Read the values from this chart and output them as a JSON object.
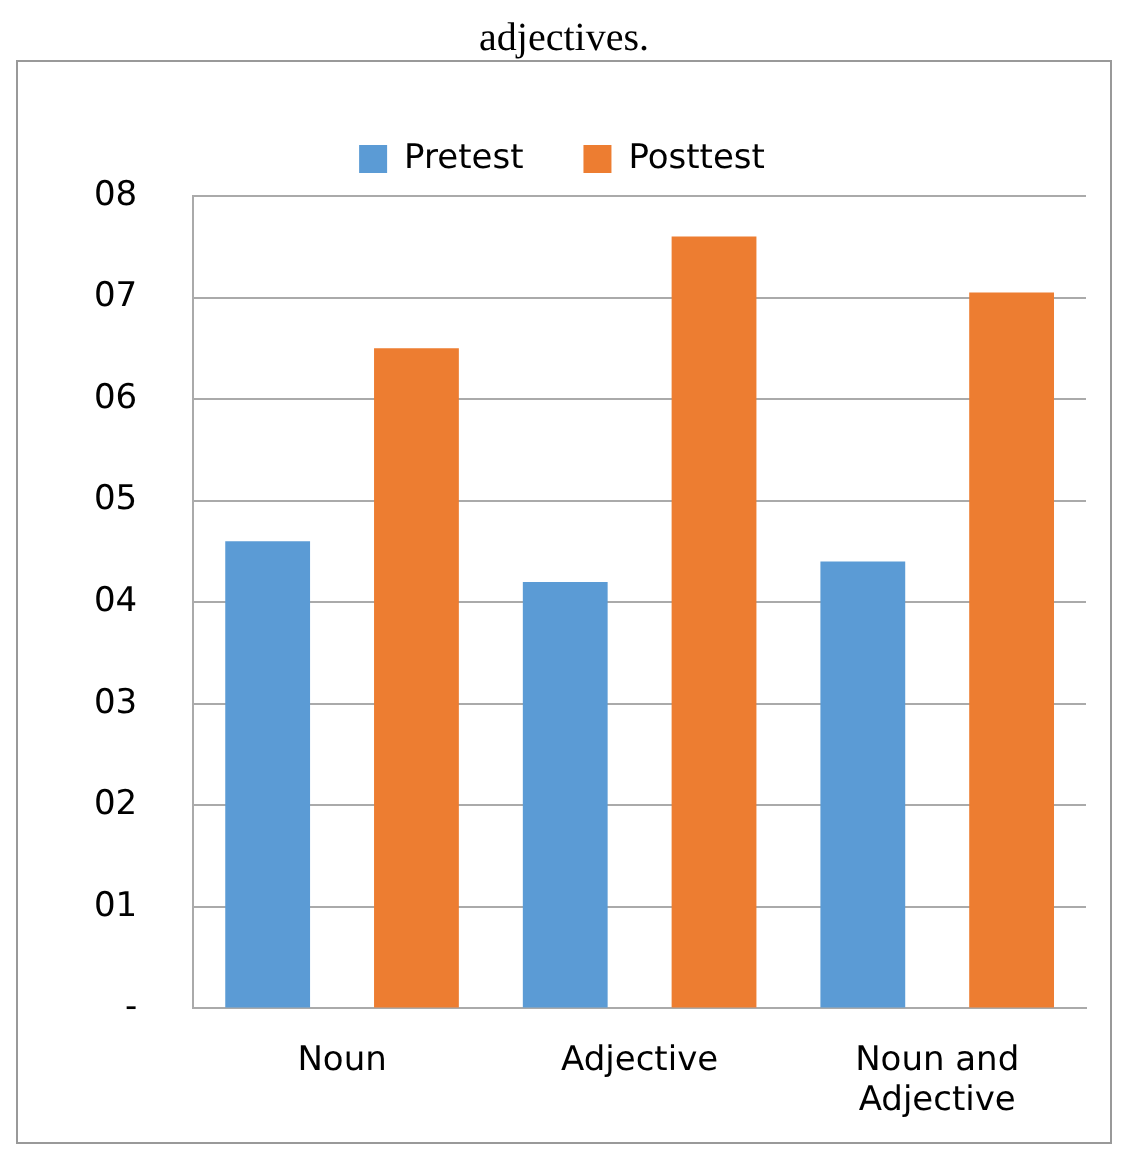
{
  "chart_data": {
    "type": "bar",
    "title": "adjectives.",
    "categories": [
      "Noun",
      "Adjective",
      "Noun and Adjective"
    ],
    "series": [
      {
        "name": "Pretest",
        "color": "#5b9bd5",
        "values": [
          4.6,
          4.2,
          4.4
        ]
      },
      {
        "name": "Posttest",
        "color": "#ed7d31",
        "values": [
          6.5,
          7.6,
          7.05
        ]
      }
    ],
    "ylim": [
      0,
      8
    ],
    "yticks": [
      {
        "value": 0,
        "label": "-"
      },
      {
        "value": 1,
        "label": "01"
      },
      {
        "value": 2,
        "label": "02"
      },
      {
        "value": 3,
        "label": "03"
      },
      {
        "value": 4,
        "label": "04"
      },
      {
        "value": 5,
        "label": "05"
      },
      {
        "value": 6,
        "label": "06"
      },
      {
        "value": 7,
        "label": "07"
      },
      {
        "value": 8,
        "label": "08"
      }
    ],
    "grid": "y",
    "legend": "top"
  }
}
